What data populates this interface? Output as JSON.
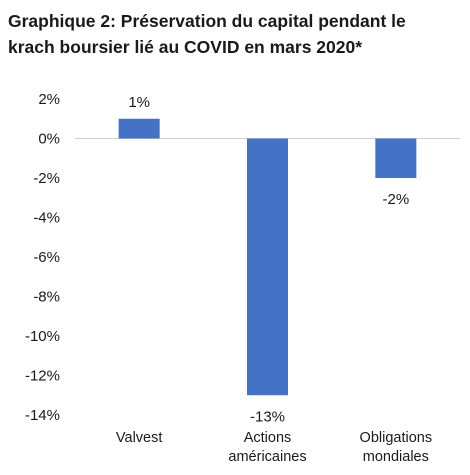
{
  "title_lines": [
    "Graphique 2: Préservation du capital pendant le",
    "krach boursier lié au COVID en mars 2020*"
  ],
  "colors": {
    "bar": "#4472C4",
    "axis": "#d0d0d0",
    "text": "#1a1a1a"
  },
  "chart_data": {
    "type": "bar",
    "title": "Graphique 2: Préservation du capital pendant le krach boursier lié au COVID en mars 2020*",
    "categories": [
      [
        "Valvest"
      ],
      [
        "Actions",
        "américaines"
      ],
      [
        "Obligations",
        "mondiales"
      ]
    ],
    "values": [
      1,
      -13,
      -2
    ],
    "data_labels": [
      "1%",
      "-13%",
      "-2%"
    ],
    "ylim": [
      -14,
      2
    ],
    "yticks": [
      2,
      0,
      -2,
      -4,
      -6,
      -8,
      -10,
      -12,
      -14
    ],
    "ytick_labels": [
      "2%",
      "0%",
      "-2%",
      "-4%",
      "-6%",
      "-8%",
      "-10%",
      "-12%",
      "-14%"
    ],
    "grid": false,
    "legend": "none"
  }
}
